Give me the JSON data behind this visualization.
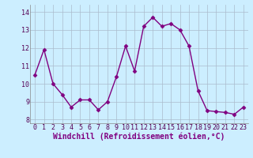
{
  "x": [
    0,
    1,
    2,
    3,
    4,
    5,
    6,
    7,
    8,
    9,
    10,
    11,
    12,
    13,
    14,
    15,
    16,
    17,
    18,
    19,
    20,
    21,
    22,
    23
  ],
  "y": [
    10.5,
    11.9,
    10.0,
    9.4,
    8.7,
    9.1,
    9.1,
    8.55,
    9.0,
    10.4,
    12.1,
    10.7,
    13.2,
    13.7,
    13.2,
    13.35,
    13.0,
    12.1,
    9.6,
    8.5,
    8.45,
    8.4,
    8.3,
    8.7
  ],
  "line_color": "#800080",
  "marker": "D",
  "marker_size": 2.5,
  "bg_color": "#cceeff",
  "grid_color": "#aabbcc",
  "xlabel": "Windchill (Refroidissement éolien,°C)",
  "xlabel_fontsize": 7,
  "xtick_labels": [
    "0",
    "1",
    "2",
    "3",
    "4",
    "5",
    "6",
    "7",
    "8",
    "9",
    "10",
    "11",
    "12",
    "13",
    "14",
    "15",
    "16",
    "17",
    "18",
    "19",
    "20",
    "21",
    "22",
    "23"
  ],
  "ytick_labels": [
    "8",
    "9",
    "10",
    "11",
    "12",
    "13",
    "14"
  ],
  "ylim": [
    7.8,
    14.4
  ],
  "xlim": [
    -0.5,
    23.5
  ],
  "tick_fontsize": 6,
  "line_width": 1.0
}
